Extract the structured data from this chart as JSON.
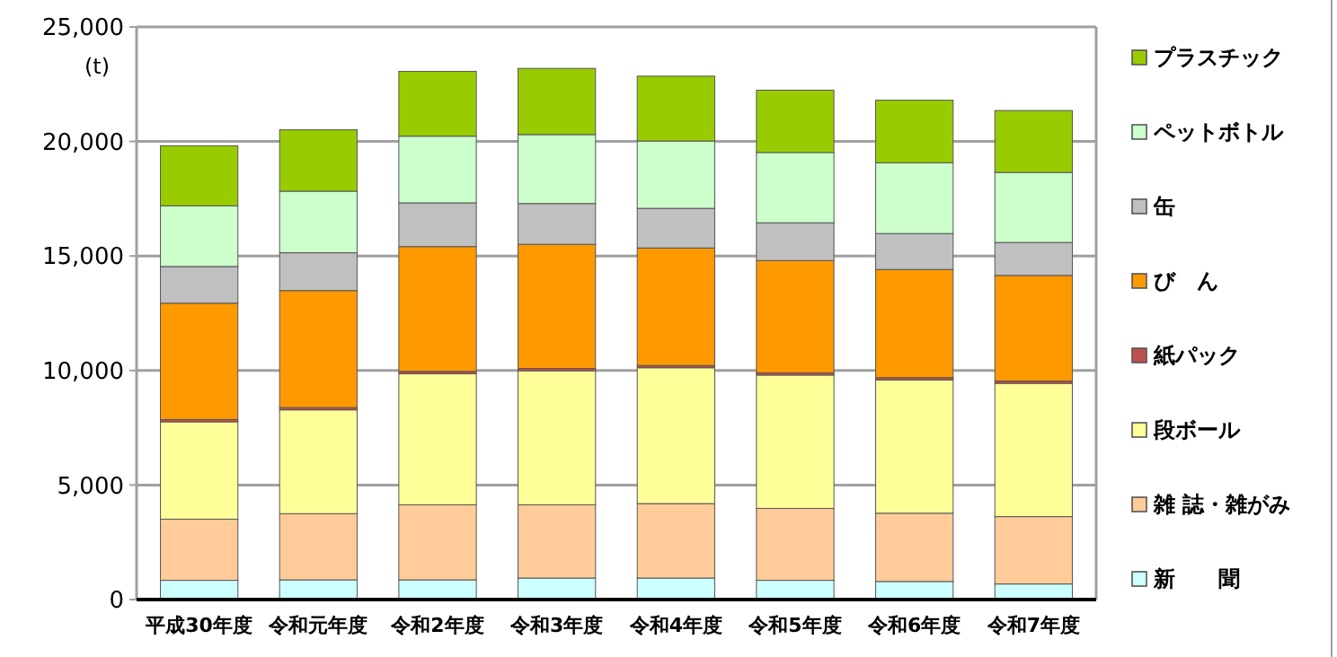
{
  "chart_data": {
    "type": "bar",
    "stacked": true,
    "ylabel": "(t)",
    "categories": [
      "平成30年度",
      "令和元年度",
      "令和2年度",
      "令和3年度",
      "令和4年度",
      "令和5年度",
      "令和6年度",
      "令和7年度"
    ],
    "series": [
      {
        "name": "新　　聞",
        "color": "#ccffff",
        "values": [
          840,
          860,
          860,
          940,
          940,
          840,
          790,
          680
        ]
      },
      {
        "name": "雑 誌・雑がみ",
        "color": "#ffcc99",
        "values": [
          2670,
          2890,
          3280,
          3200,
          3250,
          3140,
          2980,
          2940
        ]
      },
      {
        "name": "段ボール",
        "color": "#ffff99",
        "values": [
          4250,
          4530,
          5720,
          5850,
          5930,
          5820,
          5820,
          5820
        ]
      },
      {
        "name": "紙パック",
        "color": "#c0504d",
        "values": [
          100,
          100,
          100,
          100,
          100,
          100,
          100,
          100
        ]
      },
      {
        "name": "び　ん",
        "color": "#ff9900",
        "values": [
          5080,
          5110,
          5450,
          5420,
          5130,
          4900,
          4720,
          4610
        ]
      },
      {
        "name": "缶",
        "color": "#c0c0c0",
        "values": [
          1600,
          1650,
          1910,
          1780,
          1730,
          1650,
          1570,
          1440
        ]
      },
      {
        "name": "ペットボトル",
        "color": "#ccffcc",
        "values": [
          2650,
          2690,
          2910,
          3010,
          2940,
          3070,
          3090,
          3060
        ]
      },
      {
        "name": "プラスチック",
        "color": "#99cc00",
        "values": [
          2620,
          2680,
          2830,
          2890,
          2830,
          2720,
          2730,
          2700
        ]
      }
    ],
    "ylim": [
      0,
      25000
    ],
    "yticks": [
      {
        "value": 0,
        "label": "0"
      },
      {
        "value": 5000,
        "label": "5,000"
      },
      {
        "value": 10000,
        "label": "10,000"
      },
      {
        "value": 15000,
        "label": "15,000"
      },
      {
        "value": 20000,
        "label": "20,000"
      },
      {
        "value": 25000,
        "label": "25,000"
      }
    ],
    "grid": "y",
    "legend": "right"
  }
}
